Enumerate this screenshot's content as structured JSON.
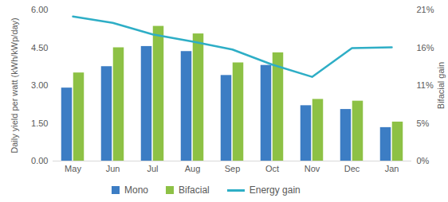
{
  "chart_data": {
    "type": "bar",
    "categories": [
      "May",
      "Jun",
      "Jul",
      "Aug",
      "Sep",
      "Oct",
      "Nov",
      "Dec",
      "Jan"
    ],
    "series": [
      {
        "name": "Mono",
        "type": "bar",
        "color": "#3c7dc4",
        "values": [
          2.9,
          3.75,
          4.55,
          4.35,
          3.4,
          3.8,
          2.2,
          2.05,
          1.33
        ]
      },
      {
        "name": "Bifacial",
        "type": "bar",
        "color": "#8dc145",
        "values": [
          3.5,
          4.5,
          5.35,
          5.05,
          3.9,
          4.3,
          2.45,
          2.38,
          1.55
        ]
      },
      {
        "name": "Energy gain",
        "type": "line",
        "color": "#2eaec6",
        "axis": "y2",
        "values": [
          20.1,
          19.2,
          17.6,
          16.6,
          15.5,
          13.4,
          11.7,
          15.7,
          15.8
        ]
      }
    ],
    "ylabel": "Daily yield per watt (kWh/kWp/day)",
    "y2label": "Bifacial gain",
    "ylim": [
      0,
      6
    ],
    "yticks": [
      {
        "value": 0,
        "label": "0.00"
      },
      {
        "value": 1.5,
        "label": "1.50"
      },
      {
        "value": 3,
        "label": "3.00"
      },
      {
        "value": 4.5,
        "label": "4.50"
      },
      {
        "value": 6,
        "label": "6.00"
      }
    ],
    "y2lim": [
      0,
      21
    ],
    "y2ticks": [
      {
        "value": 0,
        "label": "0%"
      },
      {
        "value": 5.25,
        "label": "5%"
      },
      {
        "value": 10.5,
        "label": "11%"
      },
      {
        "value": 15.75,
        "label": "16%"
      },
      {
        "value": 21,
        "label": "21%"
      }
    ],
    "legend": "bottom",
    "grid": false
  }
}
